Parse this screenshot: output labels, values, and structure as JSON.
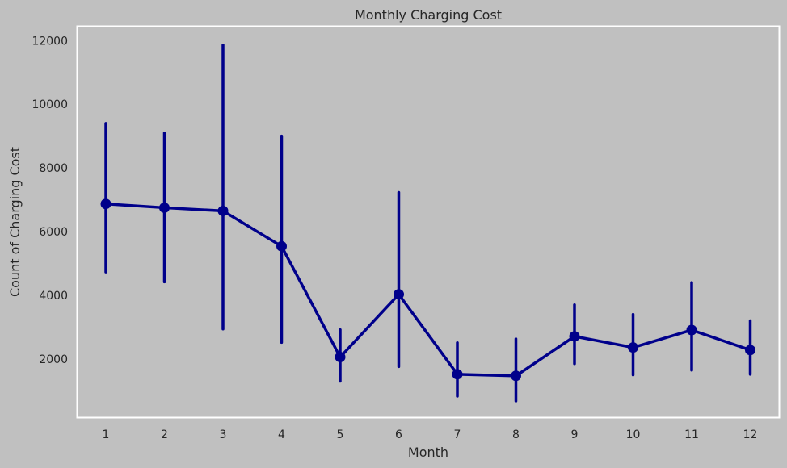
{
  "chart_data": {
    "type": "line",
    "title": "Monthly Charging Cost",
    "xlabel": "Month",
    "ylabel": "Count of Charging Cost",
    "categories": [
      "1",
      "2",
      "3",
      "4",
      "5",
      "6",
      "7",
      "8",
      "9",
      "10",
      "11",
      "12"
    ],
    "series": [
      {
        "values": [
          6870,
          6750,
          6650,
          5540,
          2060,
          4030,
          1520,
          1470,
          2710,
          2360,
          2910,
          2280
        ],
        "ci_low": [
          4730,
          4420,
          2940,
          2520,
          1300,
          1760,
          830,
          680,
          1850,
          1500,
          1650,
          1520
        ],
        "ci_high": [
          9400,
          9100,
          11860,
          9000,
          2920,
          7230,
          2510,
          2630,
          3700,
          3400,
          4400,
          3200
        ]
      }
    ],
    "yticks": [
      2000,
      4000,
      6000,
      8000,
      10000,
      12000
    ],
    "ylim": [
      160,
      12450
    ],
    "grid": false,
    "colors": {
      "background": "#c0c0c0",
      "series": "#00008b",
      "axes_border": "#ffffff",
      "text": "#262626"
    }
  }
}
